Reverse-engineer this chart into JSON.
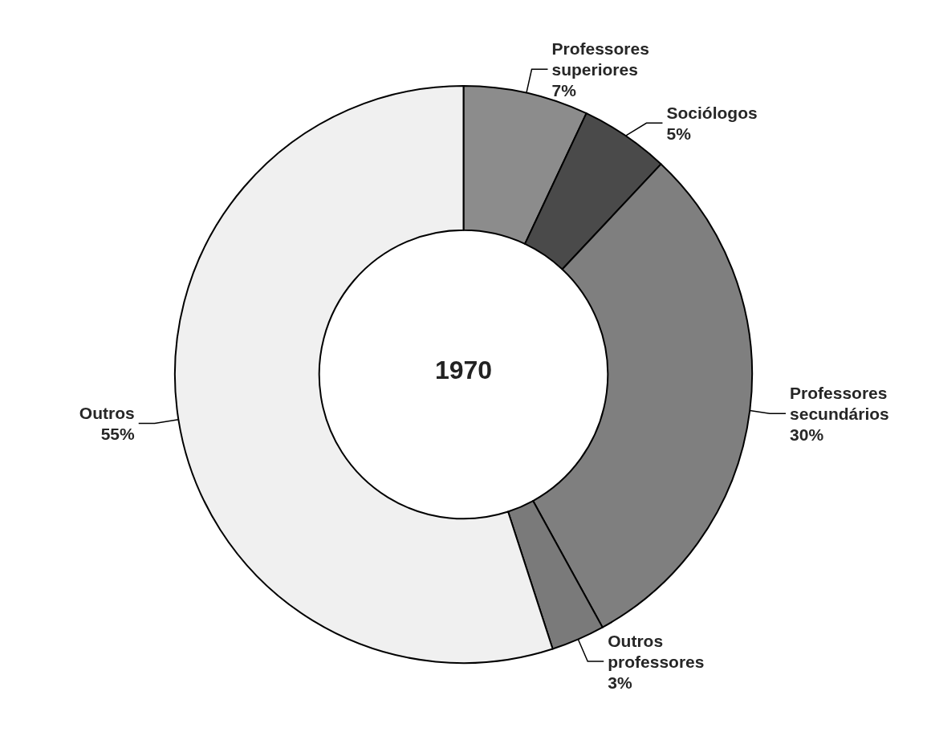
{
  "chart_data": {
    "type": "donut",
    "title": "1970",
    "categories": [
      "Professores superiores",
      "Sociólogos",
      "Professores secundários",
      "Outros professores",
      "Outros"
    ],
    "values": [
      7,
      5,
      30,
      3,
      55
    ],
    "colors": [
      "#8c8c8c",
      "#4a4a4a",
      "#7f7f7f",
      "#7a7a7a",
      "#f0f0f0"
    ],
    "value_labels": [
      "7%",
      "5%",
      "30%",
      "3%",
      "55%"
    ]
  }
}
